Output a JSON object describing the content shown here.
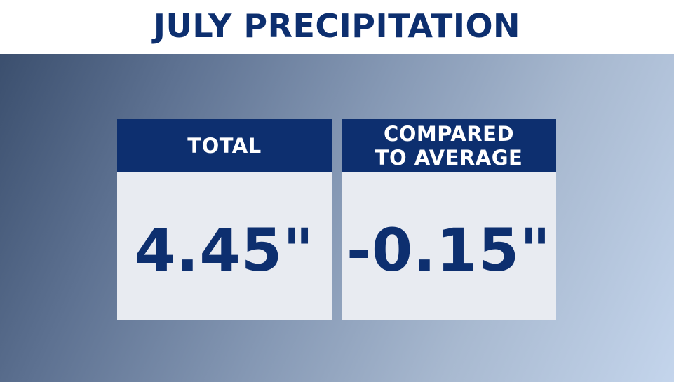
{
  "title": "JULY PRECIPITATION",
  "cards": [
    {
      "header_lines": [
        "TOTAL"
      ],
      "value": "4.45\""
    },
    {
      "header_lines": [
        "COMPARED",
        "TO AVERAGE"
      ],
      "value": "-0.15\""
    }
  ],
  "colors": {
    "navy": "#0d2f6f",
    "card_background": "#e8ebf1",
    "header_text": "#ffffff"
  }
}
